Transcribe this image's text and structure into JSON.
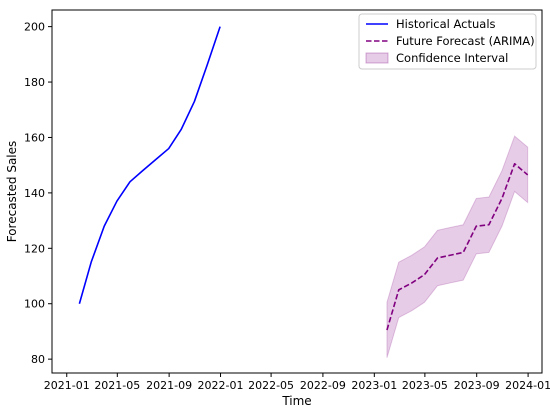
{
  "chart_data": {
    "type": "line",
    "title": "",
    "xlabel": "Time",
    "ylabel": "Forecasted Sales",
    "xlim": [
      "2020-11-27",
      "2024-02-03"
    ],
    "ylim": [
      75,
      206
    ],
    "grid": false,
    "legend_position": "top-right",
    "x_ticks": [
      "2021-01-01",
      "2021-05-01",
      "2021-09-01",
      "2022-01-01",
      "2022-05-01",
      "2022-09-01",
      "2023-01-01",
      "2023-05-01",
      "2023-09-01",
      "2024-01-01"
    ],
    "x_tick_labels": [
      "2021-01",
      "2021-05",
      "2021-09",
      "2022-01",
      "2022-05",
      "2022-09",
      "2023-01",
      "2023-05",
      "2023-09",
      "2024-01"
    ],
    "y_ticks": [
      80,
      100,
      120,
      140,
      160,
      180,
      200
    ],
    "series": [
      {
        "name": "Historical Actuals",
        "color": "#0000ff",
        "style": "solid",
        "x": [
          "2021-01-31",
          "2021-02-28",
          "2021-03-31",
          "2021-04-30",
          "2021-05-31",
          "2021-06-30",
          "2021-07-31",
          "2021-08-31",
          "2021-09-30",
          "2021-10-31",
          "2021-11-30",
          "2021-12-31"
        ],
        "values": [
          100,
          115,
          128,
          137,
          144,
          148,
          152,
          156,
          163,
          173,
          186,
          200
        ]
      },
      {
        "name": "Future Forecast (ARIMA)",
        "color": "#800080",
        "style": "dashed",
        "x": [
          "2023-01-31",
          "2023-02-28",
          "2023-03-31",
          "2023-04-30",
          "2023-05-31",
          "2023-06-30",
          "2023-07-31",
          "2023-08-31",
          "2023-09-30",
          "2023-10-31",
          "2023-11-30",
          "2023-12-31"
        ],
        "values": [
          90.5,
          105,
          107.5,
          110.5,
          116.5,
          117.5,
          118.5,
          128,
          128.5,
          138,
          150.5,
          146.5
        ]
      }
    ],
    "confidence_interval": {
      "name": "Confidence Interval",
      "color": "#800080",
      "opacity": 0.2,
      "x": [
        "2023-01-31",
        "2023-02-28",
        "2023-03-31",
        "2023-04-30",
        "2023-05-31",
        "2023-06-30",
        "2023-07-31",
        "2023-08-31",
        "2023-09-30",
        "2023-10-31",
        "2023-11-30",
        "2023-12-31"
      ],
      "lower": [
        80.5,
        95,
        97.5,
        100.5,
        106.5,
        107.5,
        108.5,
        118,
        118.5,
        128,
        140.5,
        136.5
      ],
      "upper": [
        100.5,
        115,
        117.5,
        120.5,
        126.5,
        127.5,
        128.5,
        138,
        138.5,
        148,
        160.5,
        156.5
      ]
    }
  }
}
